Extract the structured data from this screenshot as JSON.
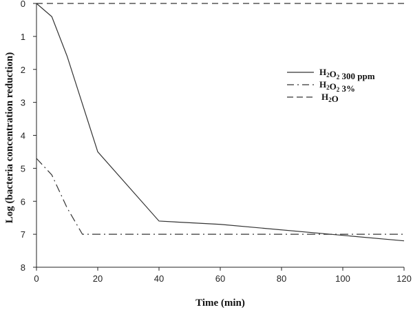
{
  "chart_data": {
    "type": "line",
    "title": "",
    "xlabel": "Time (min)",
    "ylabel": "Log (bacteria concentration reduction)",
    "xlim": [
      0,
      120
    ],
    "ylim": [
      0,
      8
    ],
    "y_inverted": true,
    "xticks": [
      0,
      20,
      40,
      60,
      80,
      100,
      120
    ],
    "yticks": [
      0,
      1,
      2,
      3,
      4,
      5,
      6,
      7,
      8
    ],
    "grid": false,
    "legend_position": "top-right",
    "series": [
      {
        "name": "H2O2 300 ppm",
        "label_main": "H",
        "sub1": "2",
        "mid": "O",
        "sub2": "2",
        "tail": " 300 ppm",
        "style": "solid",
        "x": [
          0,
          5,
          10,
          20,
          40,
          60,
          120
        ],
        "y": [
          0,
          0.4,
          1.6,
          4.5,
          6.6,
          6.7,
          7.2
        ]
      },
      {
        "name": "H2O2 3%",
        "label_main": "H",
        "sub1": "2",
        "mid": "O",
        "sub2": "2",
        "tail": " 3%",
        "style": "dashdot",
        "x": [
          0,
          5,
          10,
          15,
          120
        ],
        "y": [
          4.7,
          5.2,
          6.2,
          7.0,
          7.0
        ]
      },
      {
        "name": "H2O",
        "label_main": "H",
        "sub1": "2",
        "mid": "O",
        "sub2": "",
        "tail": "",
        "style": "dashed",
        "x": [
          0,
          120
        ],
        "y": [
          0,
          0
        ]
      }
    ]
  }
}
